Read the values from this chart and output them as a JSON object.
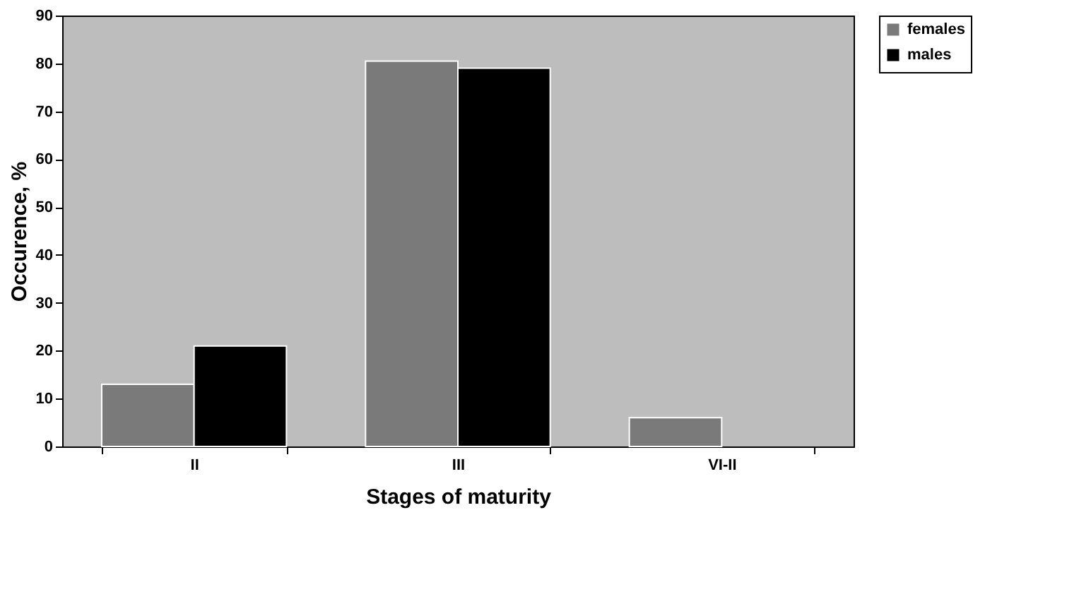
{
  "chart_data": {
    "type": "bar",
    "xlabel": "Stages of maturity",
    "ylabel": "Occurence, %",
    "categories": [
      "II",
      "III",
      "VI-II"
    ],
    "series": [
      {
        "name": "females",
        "color": "#7a7a7a",
        "values": [
          13,
          80.5,
          6
        ]
      },
      {
        "name": "males",
        "color": "#000000",
        "values": [
          21,
          79,
          null
        ]
      }
    ],
    "ylim": [
      0,
      90
    ],
    "yticks": [
      0,
      10,
      20,
      30,
      40,
      50,
      60,
      70,
      80,
      90
    ],
    "grid": false,
    "legend": "right"
  }
}
